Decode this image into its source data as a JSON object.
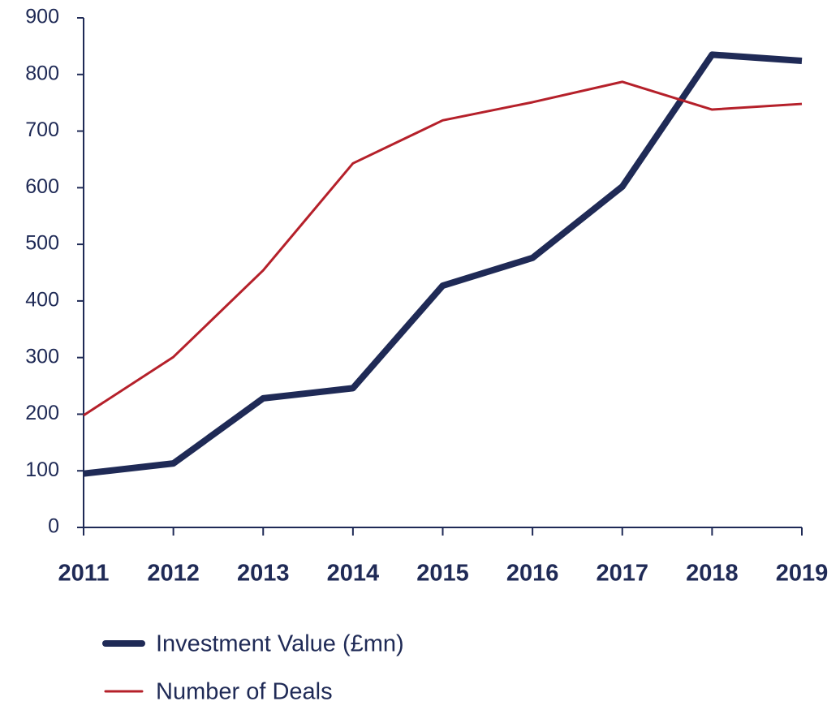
{
  "chart_data": {
    "type": "line",
    "categories": [
      "2011",
      "2012",
      "2013",
      "2014",
      "2015",
      "2016",
      "2017",
      "2018",
      "2019"
    ],
    "series": [
      {
        "name": "Investment Value (£mn)",
        "color": "#1f2a56",
        "values": [
          95,
          113,
          228,
          246,
          427,
          476,
          602,
          835,
          824
        ]
      },
      {
        "name": "Number of Deals",
        "color": "#b5202a",
        "values": [
          198,
          301,
          454,
          643,
          719,
          751,
          787,
          738,
          748
        ]
      }
    ],
    "ylim": [
      0,
      900
    ],
    "yticks": [
      0,
      100,
      200,
      300,
      400,
      500,
      600,
      700,
      800,
      900
    ],
    "grid": false
  }
}
